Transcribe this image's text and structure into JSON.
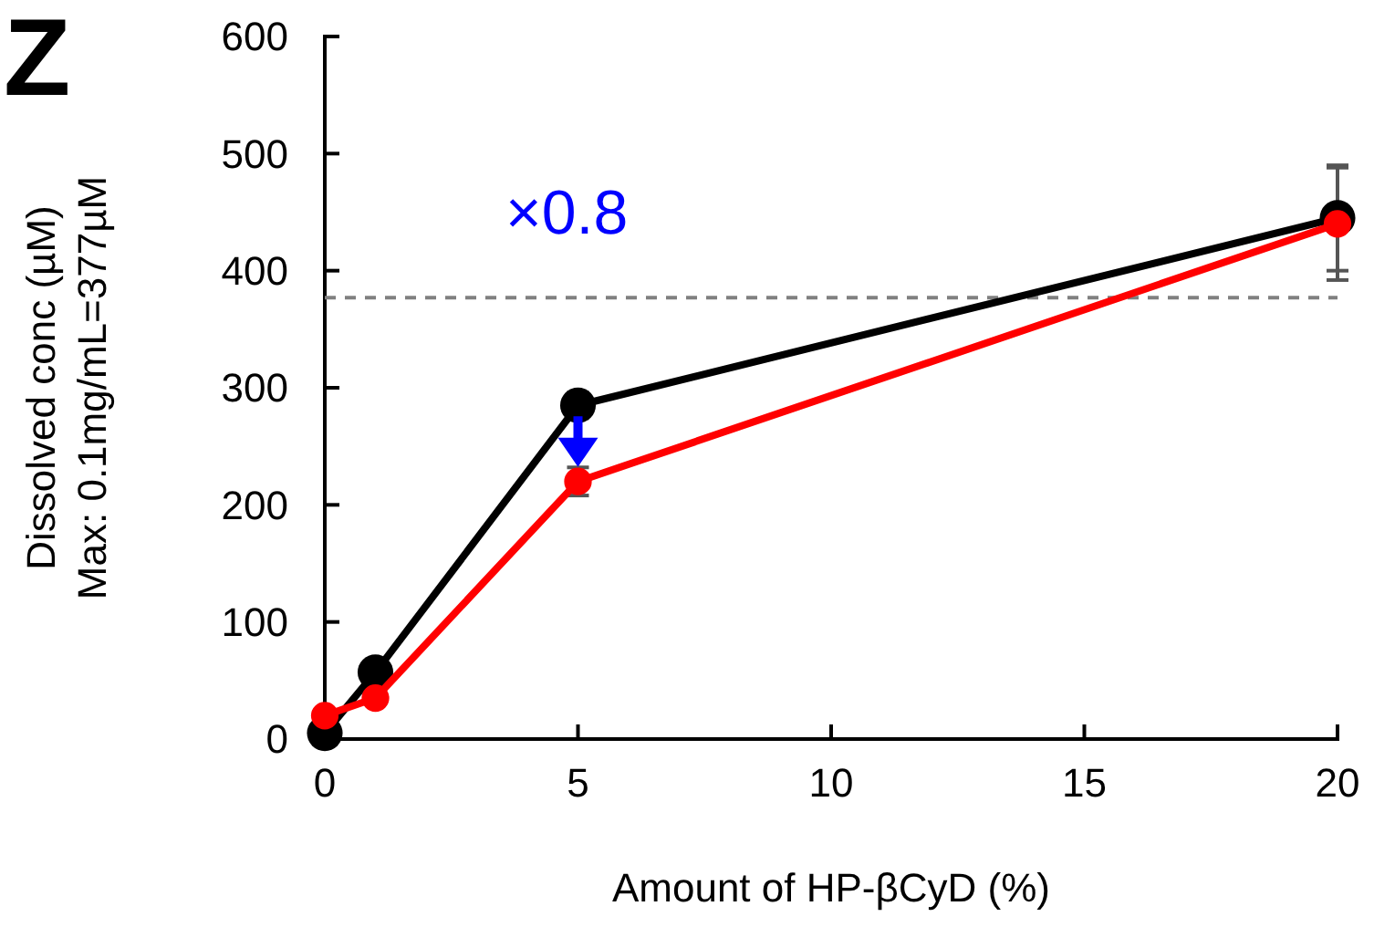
{
  "chart_data": {
    "type": "line",
    "xlabel": "Amount of HP-βCyD (%)",
    "ylabel": "Dissolved conc (µM)\nMax: 0.1mg/mL=377µM",
    "x": [
      0,
      1,
      5,
      20
    ],
    "xlim": [
      0,
      20
    ],
    "xticks": [
      0,
      5,
      10,
      15,
      20
    ],
    "ylim": [
      0,
      600
    ],
    "yticks": [
      0,
      100,
      200,
      300,
      400,
      500,
      600
    ],
    "series": [
      {
        "color": "#000000",
        "values": [
          5,
          57,
          285,
          445
        ],
        "errors": [
          null,
          null,
          11,
          45
        ]
      },
      {
        "color": "#ff0000",
        "values": [
          20,
          35,
          220,
          440
        ],
        "errors": [
          null,
          null,
          12,
          48
        ]
      }
    ],
    "ref_lines": [
      {
        "axis": "y",
        "value": 377,
        "color": "#808080",
        "line_style": "dashed"
      }
    ],
    "annotations": [
      "Z",
      "×0.8"
    ],
    "marker": "circle",
    "line_style": "solid",
    "grid": false
  }
}
